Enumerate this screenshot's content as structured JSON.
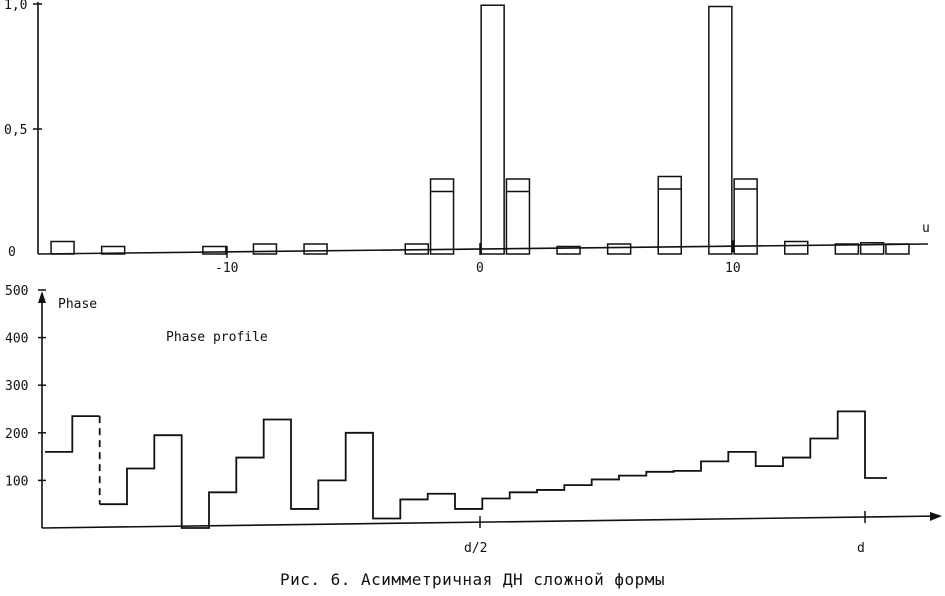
{
  "chart_data": [
    {
      "type": "bar",
      "xlabel": "u",
      "ylabel": "",
      "xlim": [
        -17.5,
        17.5
      ],
      "ylim": [
        0,
        1.0
      ],
      "x_ticks": [
        {
          "value": -10,
          "label": "-10"
        },
        {
          "value": 0,
          "label": "0"
        },
        {
          "value": 10,
          "label": "10"
        }
      ],
      "y_ticks": [
        {
          "value": 0,
          "label": "0"
        },
        {
          "value": 0.5,
          "label": "0,5"
        },
        {
          "value": 1.0,
          "label": "1,0"
        }
      ],
      "bars": [
        {
          "x": -16.5,
          "value": 0.05
        },
        {
          "x": -14.5,
          "value": 0.03
        },
        {
          "x": -10.5,
          "value": 0.03
        },
        {
          "x": -8.5,
          "value": 0.04
        },
        {
          "x": -6.5,
          "value": 0.04
        },
        {
          "x": -2.5,
          "value": 0.04
        },
        {
          "x": -1.5,
          "value": 0.3,
          "inner": 0.25
        },
        {
          "x": 0.5,
          "value": 0.995
        },
        {
          "x": 1.5,
          "value": 0.3,
          "inner": 0.25
        },
        {
          "x": 3.5,
          "value": 0.03
        },
        {
          "x": 5.5,
          "value": 0.04
        },
        {
          "x": 7.5,
          "value": 0.31,
          "inner": 0.26
        },
        {
          "x": 9.5,
          "value": 0.99
        },
        {
          "x": 10.5,
          "value": 0.3,
          "inner": 0.26
        },
        {
          "x": 12.5,
          "value": 0.05
        },
        {
          "x": 14.5,
          "value": 0.04
        },
        {
          "x": 15.5,
          "value": 0.045
        },
        {
          "x": 16.5,
          "value": 0.04
        }
      ]
    },
    {
      "type": "line",
      "step": true,
      "title": "Phase profile",
      "ylabel": "Phase",
      "xlabel": "",
      "xlim": [
        0,
        1.2
      ],
      "ylim": [
        0,
        500
      ],
      "x_ticks": [
        {
          "value": 0.5,
          "label": "d/2"
        },
        {
          "value": 1.0,
          "label": "d"
        }
      ],
      "y_ticks": [
        {
          "value": 100,
          "label": "100"
        },
        {
          "value": 200,
          "label": "200"
        },
        {
          "value": 300,
          "label": "300"
        },
        {
          "value": 400,
          "label": "400"
        },
        {
          "value": 500,
          "label": "500"
        }
      ],
      "x_edges": [
        0,
        0.0333,
        0.0667,
        0.1,
        0.1333,
        0.1667,
        0.2,
        0.2333,
        0.2667,
        0.3,
        0.3333,
        0.3667,
        0.4,
        0.4333,
        0.4667,
        0.5,
        0.5333,
        0.5667,
        0.6,
        0.6333,
        0.6667,
        0.7,
        0.7333,
        0.7667,
        0.8,
        0.8333,
        0.8667,
        0.9,
        0.9333,
        0.9667,
        1.0
      ],
      "values": [
        160,
        235,
        50,
        125,
        195,
        0,
        75,
        148,
        228,
        40,
        100,
        200,
        20,
        60,
        72,
        40,
        62,
        75,
        80,
        90,
        102,
        110,
        118,
        120,
        140,
        160,
        130,
        148,
        188,
        245,
        105
      ],
      "dashed_segments": [
        2
      ]
    }
  ],
  "caption": "Рис. 6. Асимметричная ДН  сложной формы"
}
